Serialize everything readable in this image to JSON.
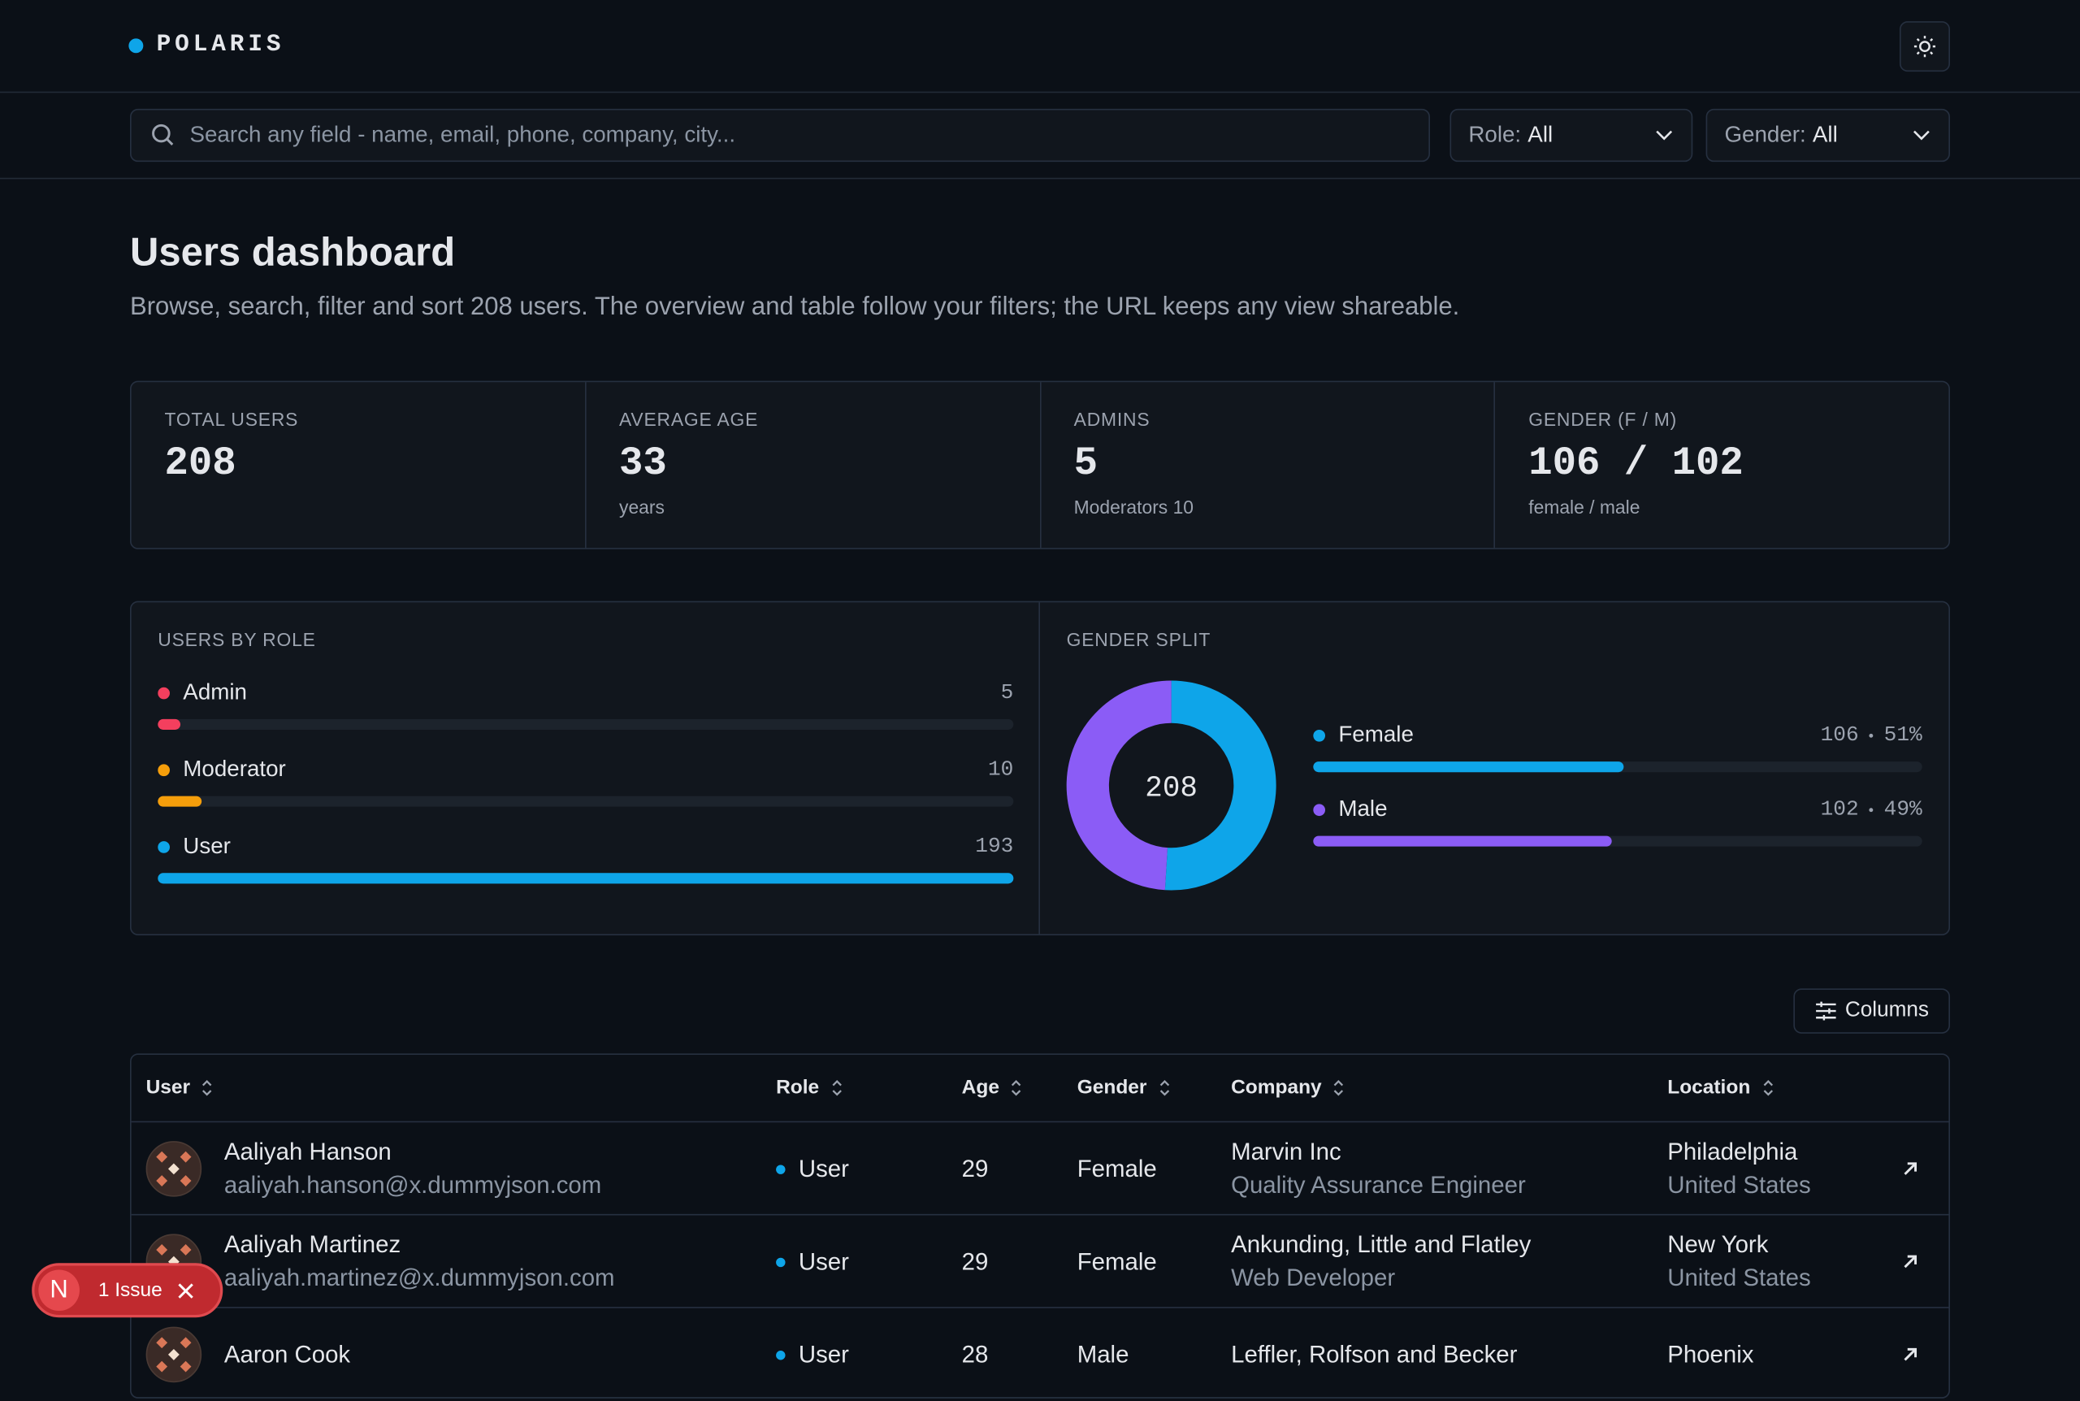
{
  "header": {
    "brand": "POLARIS"
  },
  "toolbar": {
    "search_placeholder": "Search any field - name, email, phone, company, city...",
    "role_filter": {
      "label": "Role:",
      "value": "All"
    },
    "gender_filter": {
      "label": "Gender:",
      "value": "All"
    }
  },
  "page": {
    "title": "Users dashboard",
    "subtitle": "Browse, search, filter and sort 208 users. The overview and table follow your filters; the URL keeps any view shareable."
  },
  "stats": [
    {
      "label": "TOTAL USERS",
      "value": 208
    },
    {
      "label": "AVERAGE AGE",
      "value": 33,
      "note": "years"
    },
    {
      "label": "ADMINS",
      "value": 5,
      "note": "Moderators 10"
    },
    {
      "label": "GENDER (F / M)",
      "value": "106 / 102",
      "note": "female / male"
    }
  ],
  "roles": {
    "title": "USERS BY ROLE",
    "items": [
      {
        "name": "Admin",
        "count": 5,
        "color": "#f43f5e"
      },
      {
        "name": "Moderator",
        "count": 10,
        "color": "#f59e0b"
      },
      {
        "name": "User",
        "count": 193,
        "color": "#0ea5e9"
      }
    ]
  },
  "gender": {
    "title": "GENDER SPLIT",
    "total": 208,
    "items": [
      {
        "name": "Female",
        "count": 106,
        "share": "51%",
        "color": "#0ea5e9"
      },
      {
        "name": "Male",
        "count": 102,
        "share": "49%",
        "color": "#8b5cf6"
      }
    ]
  },
  "table": {
    "columns_button": "Columns",
    "headers": [
      "User",
      "Role",
      "Age",
      "Gender",
      "Company",
      "Location"
    ],
    "rows": [
      {
        "name": "Aaliyah Hanson",
        "email": "aaliyah.hanson@x.dummyjson.com",
        "role": "User",
        "age": 29,
        "gender": "Female",
        "company": "Marvin Inc",
        "job": "Quality Assurance Engineer",
        "city": "Philadelphia",
        "country": "United States"
      },
      {
        "name": "Aaliyah Martinez",
        "email": "aaliyah.martinez@x.dummyjson.com",
        "role": "User",
        "age": 29,
        "gender": "Female",
        "company": "Ankunding, Little and Flatley",
        "job": "Web Developer",
        "city": "New York",
        "country": "United States"
      },
      {
        "name": "Aaron Cook",
        "role": "User",
        "age": 28,
        "gender": "Male",
        "company": "Leffler, Rolfson and Becker",
        "city": "Phoenix"
      }
    ]
  },
  "toast": {
    "avatar": "N",
    "text": "1 Issue"
  }
}
